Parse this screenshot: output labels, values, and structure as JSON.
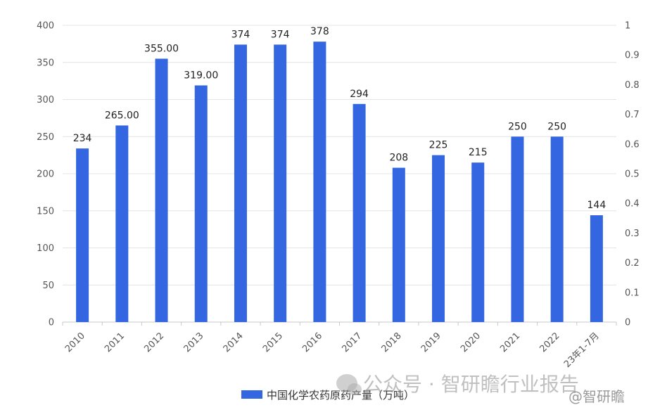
{
  "chart_data": {
    "type": "bar",
    "title": "",
    "xlabel": "",
    "ylabel": "",
    "categories": [
      "2010",
      "2011",
      "2012",
      "2013",
      "2014",
      "2015",
      "2016",
      "2017",
      "2018",
      "2019",
      "2020",
      "2021",
      "2022",
      "23年1-7月"
    ],
    "series": [
      {
        "name": "中国化学农药原药产量（万吨）",
        "values": [
          234,
          265,
          355,
          319,
          374,
          374,
          378,
          294,
          208,
          225,
          215,
          250,
          250,
          144
        ],
        "labels": [
          "234",
          "265.00",
          "355.00",
          "319.00",
          "374",
          "374",
          "378",
          "294",
          "208",
          "225",
          "215",
          "250",
          "250",
          "144"
        ]
      }
    ],
    "ylim": [
      0,
      400
    ],
    "yticks": [
      "0",
      "50",
      "100",
      "150",
      "200",
      "250",
      "300",
      "350",
      "400"
    ],
    "y2lim": [
      0,
      1
    ],
    "y2ticks": [
      "0",
      "0.1",
      "0.2",
      "0.3",
      "0.4",
      "0.5",
      "0.6",
      "0.7",
      "0.8",
      "0.9",
      "1"
    ],
    "grid": true,
    "legend_position": "bottom",
    "bar_color": "#3366e0"
  },
  "watermark": {
    "text": "公众号 · 智研瞻行业报告",
    "handle": "@智研瞻"
  }
}
